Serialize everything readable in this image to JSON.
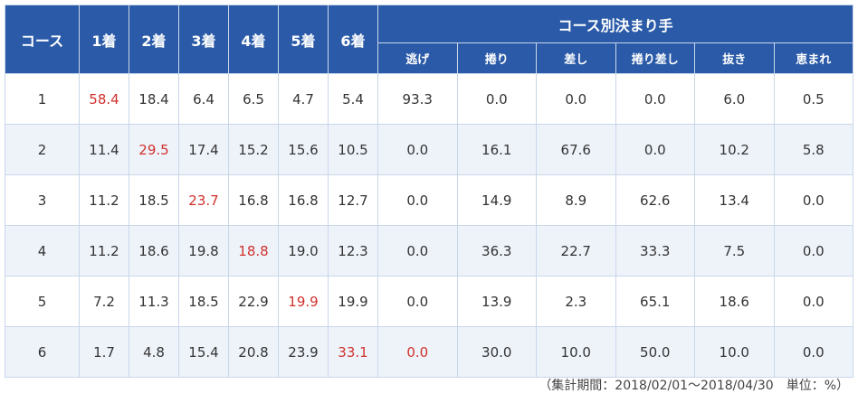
{
  "table": {
    "header": {
      "course": "コース",
      "places": [
        "1着",
        "2着",
        "3着",
        "4着",
        "5着",
        "6着"
      ],
      "kimarite_title": "コース別決まり手",
      "kimarite": [
        "逃げ",
        "捲り",
        "差し",
        "捲り差し",
        "抜き",
        "恵まれ"
      ]
    },
    "rows": [
      [
        "1",
        "58.4",
        "18.4",
        "6.4",
        "6.5",
        "4.7",
        "5.4",
        "93.3",
        "0.0",
        "0.0",
        "0.0",
        "6.0",
        "0.5"
      ],
      [
        "2",
        "11.4",
        "29.5",
        "17.4",
        "15.2",
        "15.6",
        "10.5",
        "0.0",
        "16.1",
        "67.6",
        "0.0",
        "10.2",
        "5.8"
      ],
      [
        "3",
        "11.2",
        "18.5",
        "23.7",
        "16.8",
        "16.8",
        "12.7",
        "0.0",
        "14.9",
        "8.9",
        "62.6",
        "13.4",
        "0.0"
      ],
      [
        "4",
        "11.2",
        "18.6",
        "19.8",
        "18.8",
        "19.0",
        "12.3",
        "0.0",
        "36.3",
        "22.7",
        "33.3",
        "7.5",
        "0.0"
      ],
      [
        "5",
        "7.2",
        "11.3",
        "18.5",
        "22.9",
        "19.9",
        "19.9",
        "0.0",
        "13.9",
        "2.3",
        "65.1",
        "18.6",
        "0.0"
      ],
      [
        "6",
        "1.7",
        "4.8",
        "15.4",
        "20.8",
        "23.9",
        "33.1",
        "0.0",
        "30.0",
        "10.0",
        "50.0",
        "10.0",
        "0.0"
      ]
    ],
    "note": "（集計期間：2018/02/01～2018/04/30　単位：%）"
  }
}
